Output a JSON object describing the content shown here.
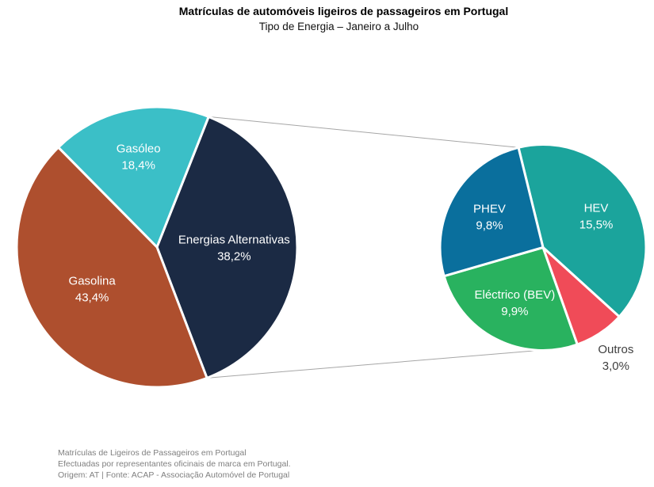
{
  "title": "Matrículas de automóveis ligeiros de passageiros em Portugal",
  "subtitle": "Tipo de Energia – Janeiro a Julho",
  "footer": {
    "line1": "Matrículas de Ligeiros de Passageiros em Portugal",
    "line2": "Efectuadas por representantes oficinais de marca em Portugal.",
    "line3": "Origem: AT | Fonte: ACAP - Associação Automóvel de Portugal"
  },
  "chart_data": {
    "type": "pie",
    "variant": "pie-of-pie",
    "title": "Matrículas de automóveis ligeiros de passageiros em Portugal",
    "subtitle": "Tipo de Energia – Janeiro a Julho",
    "legend": "none",
    "slice_border_color": "#FFFFFF",
    "label_text_color_inside": "#FFFFFF",
    "label_text_color_outside": "#404040",
    "connector_line_color": "#A6A6A6",
    "primary_pie": {
      "start_angle_deg": 21.6,
      "label_r_frac": 0.55,
      "slices": [
        {
          "label": "Energias Alternativas",
          "value_pct": 38.2,
          "display": "38,2%",
          "color": "#1B2A44"
        },
        {
          "label": "Gasolina",
          "value_pct": 43.4,
          "display": "43,4%",
          "color": "#AE4F2E"
        },
        {
          "label": "Gasóleo",
          "value_pct": 18.4,
          "display": "18,4%",
          "color": "#3BBFC7",
          "label_r_frac": 0.66
        }
      ]
    },
    "secondary_pie": {
      "parent_slice": "Energias Alternativas",
      "total_pct": 38.2,
      "start_angle_deg": -13.8,
      "label_r_frac": 0.6,
      "slices": [
        {
          "label": "HEV",
          "value_pct": 15.5,
          "display": "15,5%",
          "color": "#1BA49C"
        },
        {
          "label": "Outros",
          "value_pct": 3.0,
          "display": "3,0%",
          "color": "#F04B58",
          "label_outside": true
        },
        {
          "label": "Eléctrico (BEV)",
          "value_pct": 9.9,
          "display": "9,9%",
          "color": "#29B25F"
        },
        {
          "label": "PHEV",
          "value_pct": 9.8,
          "display": "9,8%",
          "color": "#0A6F9D"
        }
      ]
    }
  }
}
